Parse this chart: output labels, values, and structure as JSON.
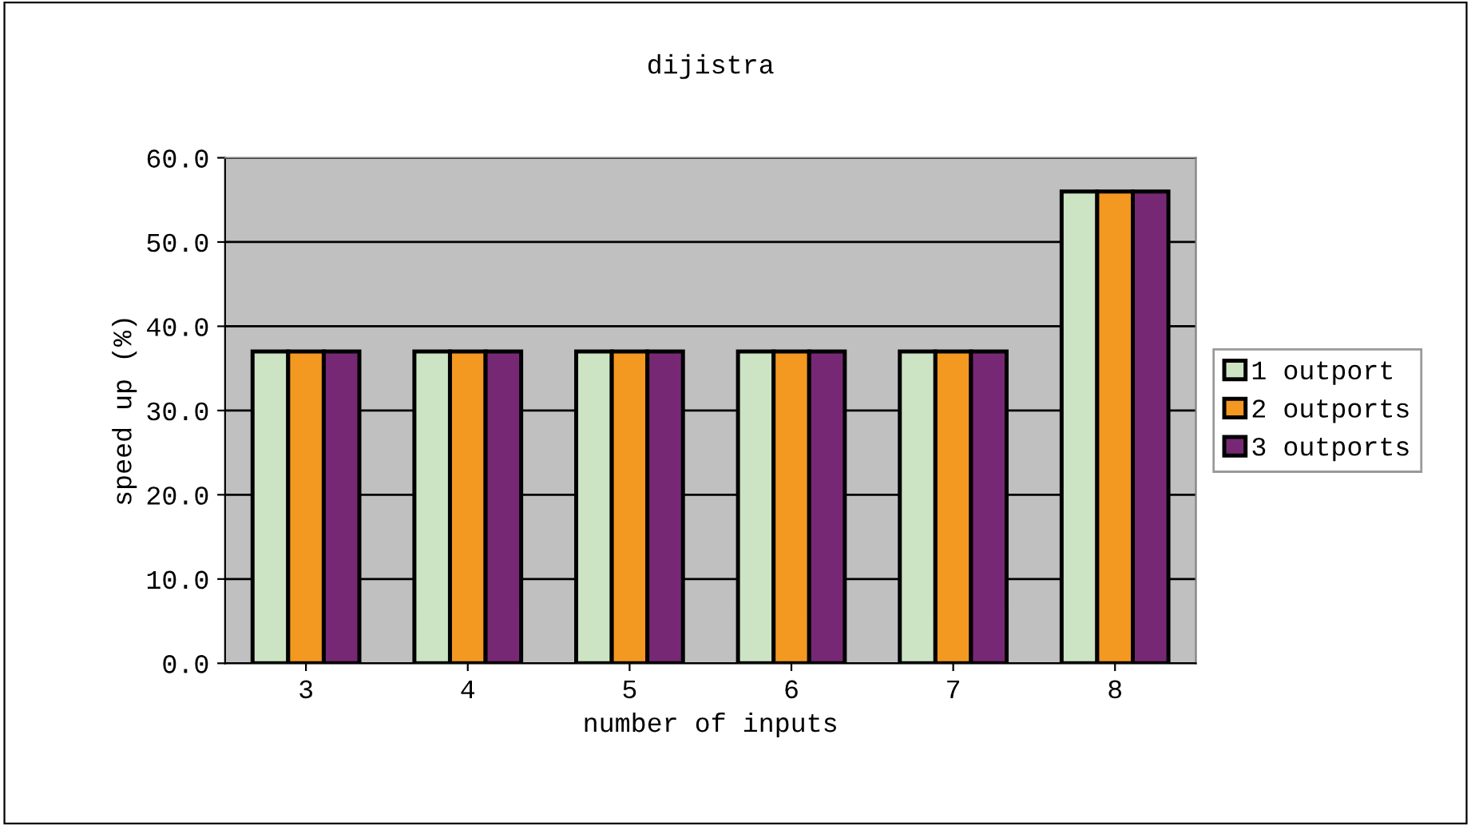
{
  "chart_data": {
    "type": "bar",
    "title": "dijistra",
    "xlabel": "number of inputs",
    "ylabel": "speed up (%)",
    "categories": [
      "3",
      "4",
      "5",
      "6",
      "7",
      "8"
    ],
    "series": [
      {
        "name": "1 outport",
        "color": "#cce4c4",
        "values": [
          37,
          37,
          37,
          37,
          37,
          56
        ]
      },
      {
        "name": "2 outports",
        "color": "#f39820",
        "values": [
          37,
          37,
          37,
          37,
          37,
          56
        ]
      },
      {
        "name": "3 outports",
        "color": "#772875",
        "values": [
          37,
          37,
          37,
          37,
          37,
          56
        ]
      }
    ],
    "ylim": [
      0,
      60
    ],
    "yticks": [
      {
        "value": 0,
        "label": "0.0"
      },
      {
        "value": 10,
        "label": "10.0"
      },
      {
        "value": 20,
        "label": "20.0"
      },
      {
        "value": 30,
        "label": "30.0"
      },
      {
        "value": 40,
        "label": "40.0"
      },
      {
        "value": 50,
        "label": "50.0"
      },
      {
        "value": 60,
        "label": "60.0"
      }
    ],
    "grid": "y",
    "legend": "right"
  }
}
